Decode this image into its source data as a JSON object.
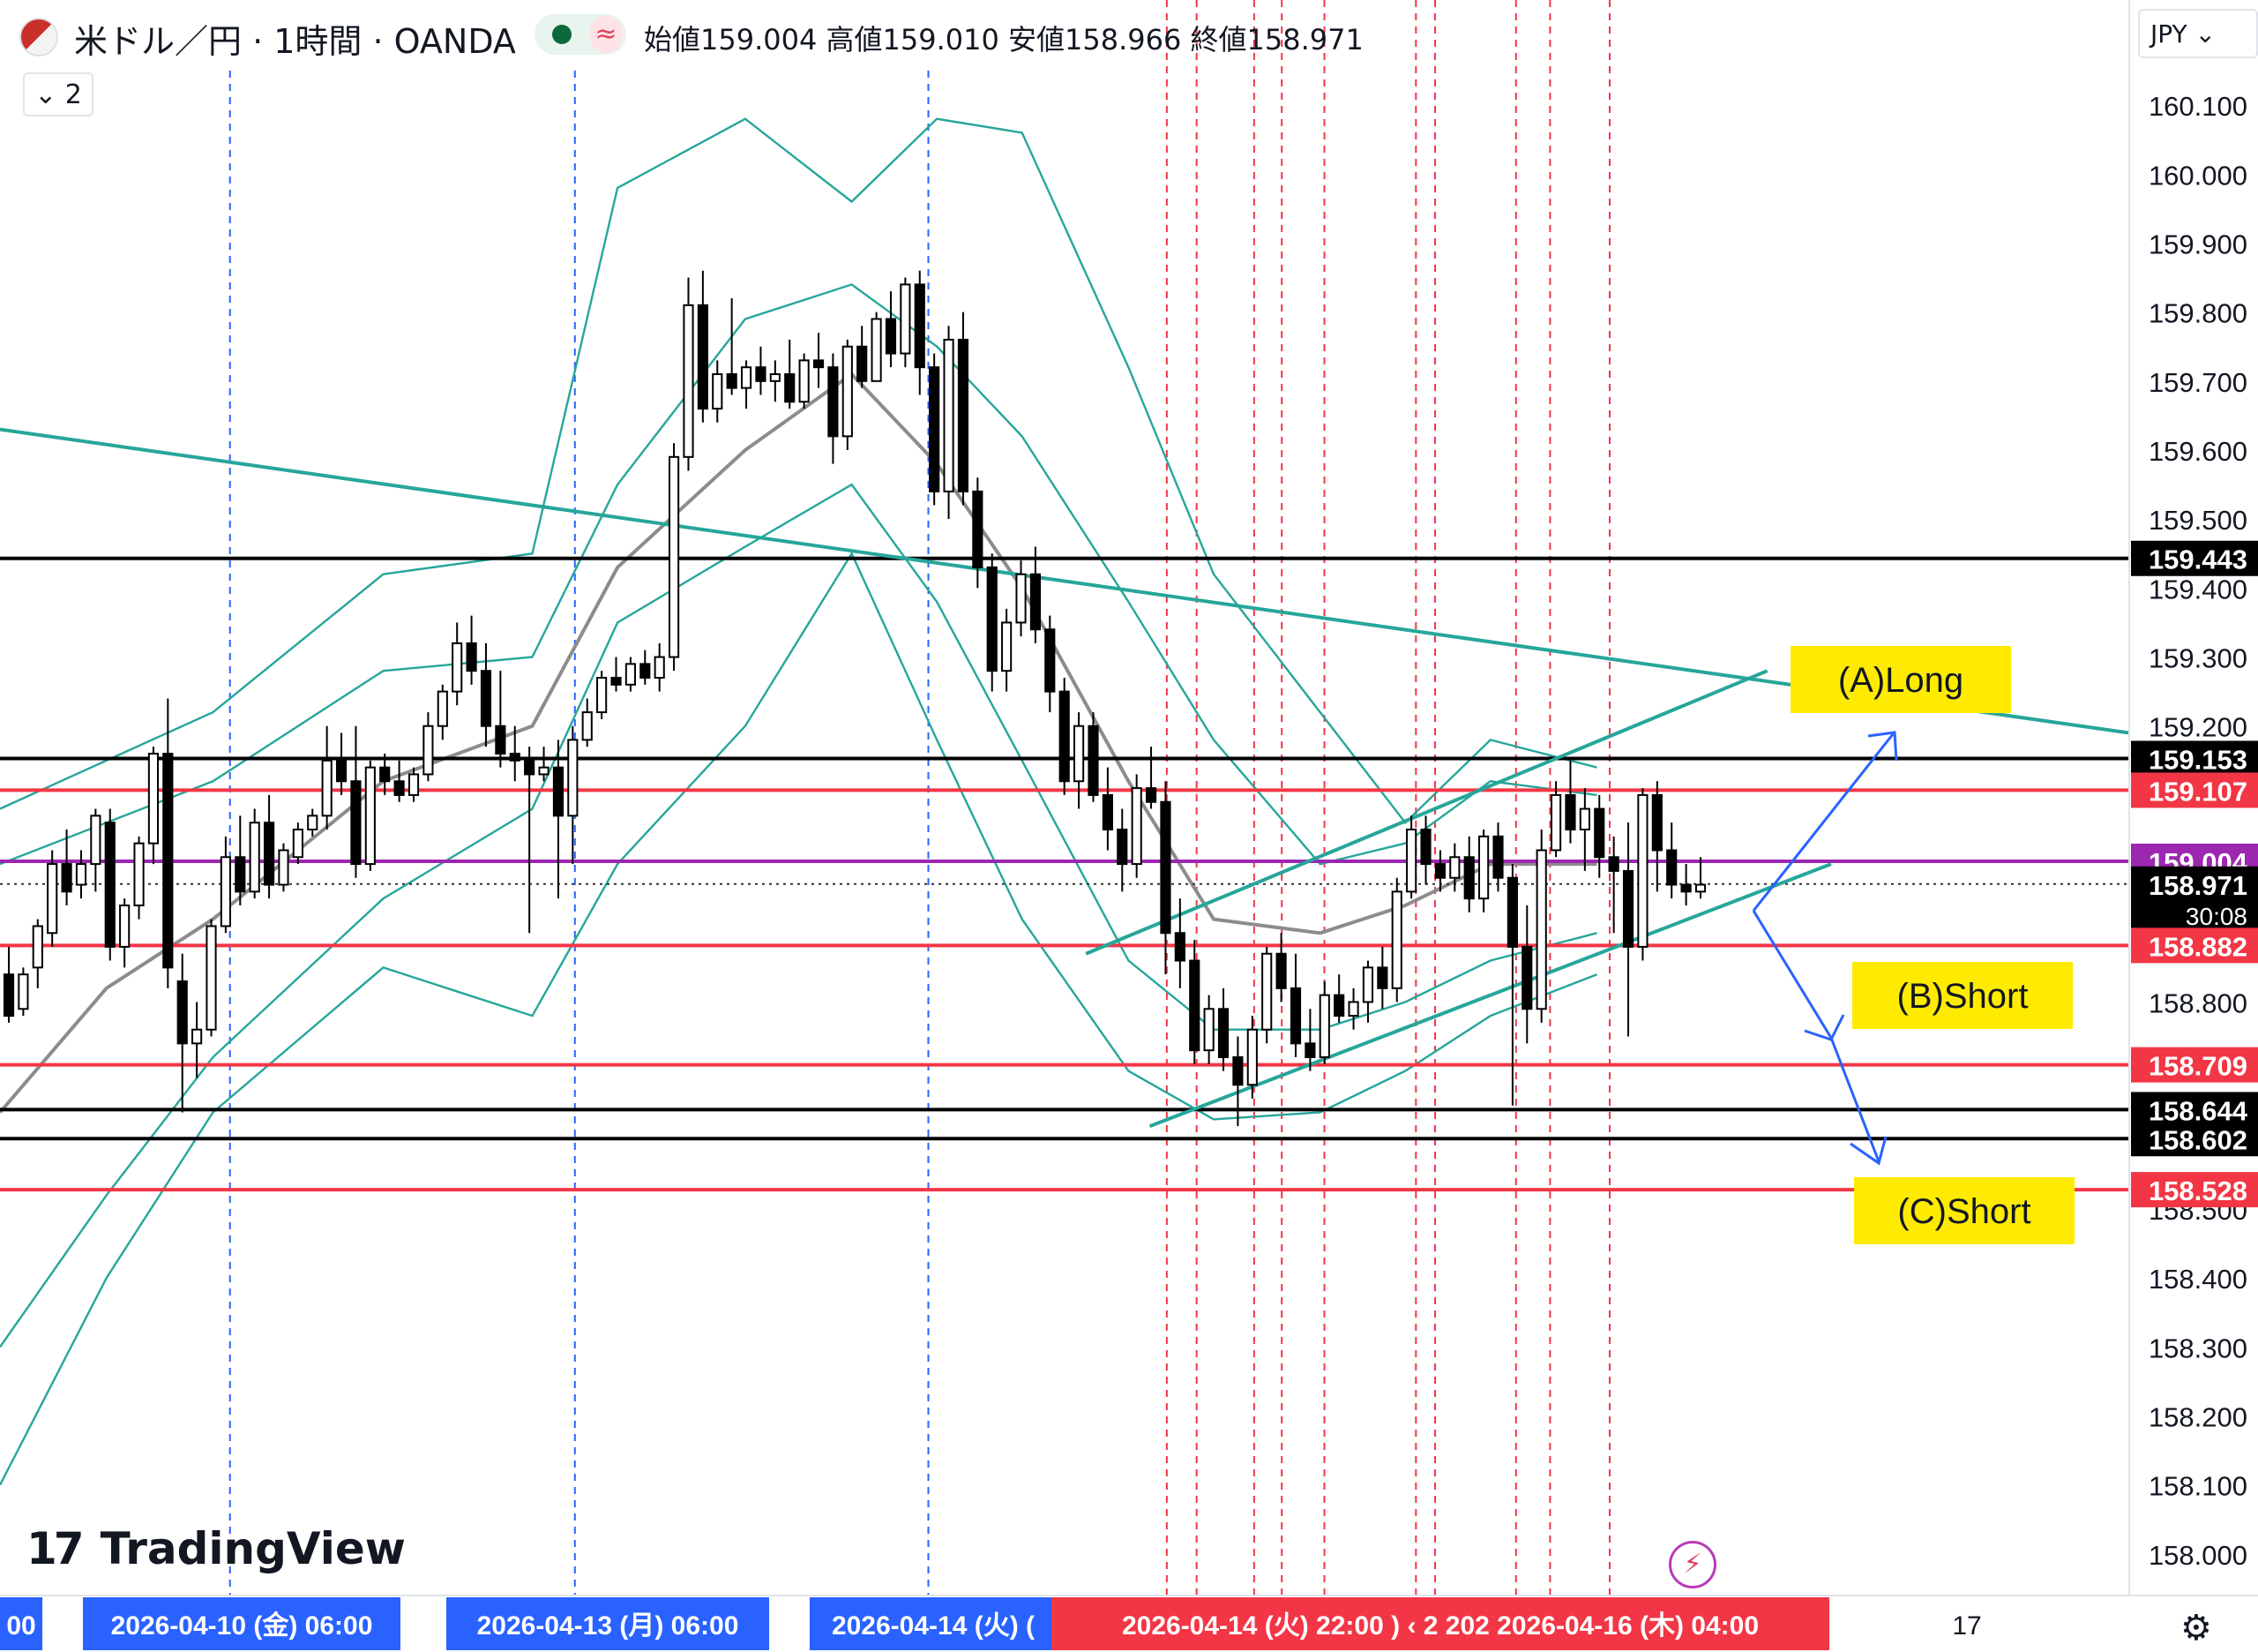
{
  "header": {
    "symbol": "米ドル／円 · 1時間 · OANDA",
    "wave_icon": "≈",
    "ohlc": "始値159.004 高値159.010 安値158.966 終値158.971",
    "indicator_toggle": "⌄ 2",
    "currency": "JPY ⌄"
  },
  "branding": {
    "logo_mark": "17",
    "logo_text": "TradingView"
  },
  "icons": [
    "flag-icon",
    "status-dot-icon",
    "wave-icon",
    "lightning-icon",
    "settings-icon"
  ],
  "colors": {
    "up_candle": "#ffffff",
    "down_candle": "#000000",
    "bollinger": "#26a69a",
    "ma": "#8c8c8c",
    "trendline": "#26a69a",
    "support_black": "#000000",
    "level_red": "#f23645",
    "level_purple": "#9c27b0",
    "arrow": "#2962ff",
    "label_yellow": "#ffeb00",
    "time_highlight": "#f23645",
    "time_base": "#2962ff"
  },
  "chart_data": {
    "type": "candlestick",
    "symbol": "USD/JPY",
    "timeframe": "1h",
    "ylim": [
      157.95,
      160.15
    ],
    "y_ticks": [
      "160.000",
      "159.900",
      "159.800",
      "159.700",
      "159.600",
      "159.500",
      "159.400",
      "159.300",
      "159.200",
      "158.800",
      "158.400",
      "158.300",
      "158.200",
      "158.100",
      "158.000"
    ],
    "partial_ticks": [
      "160.100",
      "158.500"
    ],
    "price_labels": [
      {
        "value": 159.443,
        "text": "159.443",
        "style": "black"
      },
      {
        "value": 159.153,
        "text": "159.153",
        "style": "black"
      },
      {
        "value": 159.107,
        "text": "159.107",
        "style": "red"
      },
      {
        "value": 159.004,
        "text": "159.004",
        "style": "purple"
      },
      {
        "value": 158.971,
        "text": "158.971",
        "sub": "30:08",
        "style": "black"
      },
      {
        "value": 158.882,
        "text": "158.882",
        "style": "red"
      },
      {
        "value": 158.709,
        "text": "158.709",
        "style": "red"
      },
      {
        "value": 158.644,
        "text": "158.644",
        "style": "black"
      },
      {
        "value": 158.602,
        "text": "158.602",
        "style": "black"
      },
      {
        "value": 158.528,
        "text": "158.528",
        "style": "red"
      }
    ],
    "hlines": [
      {
        "value": 159.443,
        "color": "black"
      },
      {
        "value": 159.153,
        "color": "black"
      },
      {
        "value": 159.107,
        "color": "red"
      },
      {
        "value": 159.004,
        "color": "purple"
      },
      {
        "value": 158.971,
        "color": "dotted"
      },
      {
        "value": 158.882,
        "color": "red"
      },
      {
        "value": 158.709,
        "color": "red"
      },
      {
        "value": 158.644,
        "color": "black"
      },
      {
        "value": 158.602,
        "color": "black"
      },
      {
        "value": 158.528,
        "color": "red"
      }
    ],
    "x_labels": [
      {
        "text": "00",
        "style": "blue"
      },
      {
        "text": "2026-04-10 (金)   06:00",
        "style": "blue"
      },
      {
        "text": "2026-04-13 (月)   06:00",
        "style": "blue"
      },
      {
        "text": "2026-04-14 (火)   (",
        "style": "blue"
      },
      {
        "text": "2026-04-14 (火)   22:00  )  ‹  2  202  2026-04-16 (木)   04:00",
        "style": "red"
      },
      {
        "text": "17",
        "style": "plain"
      }
    ],
    "annotations": [
      "(A)Long",
      "(B)Short",
      "(C)Short"
    ],
    "candles": [
      [
        158.84,
        158.88,
        158.77,
        158.78
      ],
      [
        158.79,
        158.85,
        158.78,
        158.84
      ],
      [
        158.85,
        158.92,
        158.82,
        158.91
      ],
      [
        158.9,
        159.02,
        158.88,
        159.0
      ],
      [
        159.0,
        159.05,
        158.94,
        158.96
      ],
      [
        158.97,
        159.02,
        158.95,
        159.0
      ],
      [
        159.0,
        159.08,
        158.96,
        159.07
      ],
      [
        159.06,
        159.08,
        158.86,
        158.88
      ],
      [
        158.88,
        158.95,
        158.85,
        158.94
      ],
      [
        158.94,
        159.04,
        158.92,
        159.03
      ],
      [
        159.03,
        159.17,
        159.0,
        159.16
      ],
      [
        159.16,
        159.24,
        158.82,
        158.85
      ],
      [
        158.83,
        158.87,
        158.64,
        158.74
      ],
      [
        158.74,
        158.8,
        158.69,
        158.76
      ],
      [
        158.76,
        158.92,
        158.75,
        158.91
      ],
      [
        158.91,
        159.04,
        158.9,
        159.01
      ],
      [
        159.01,
        159.07,
        158.94,
        158.96
      ],
      [
        158.96,
        159.08,
        158.95,
        159.06
      ],
      [
        159.06,
        159.1,
        158.95,
        158.97
      ],
      [
        158.97,
        159.03,
        158.96,
        159.02
      ],
      [
        159.01,
        159.06,
        159.0,
        159.05
      ],
      [
        159.05,
        159.08,
        159.04,
        159.07
      ],
      [
        159.07,
        159.2,
        159.05,
        159.15
      ],
      [
        159.15,
        159.19,
        159.1,
        159.12
      ],
      [
        159.12,
        159.2,
        158.98,
        159.0
      ],
      [
        159.0,
        159.15,
        158.99,
        159.14
      ],
      [
        159.14,
        159.16,
        159.1,
        159.12
      ],
      [
        159.12,
        159.15,
        159.09,
        159.1
      ],
      [
        159.1,
        159.14,
        159.09,
        159.13
      ],
      [
        159.13,
        159.22,
        159.12,
        159.2
      ],
      [
        159.2,
        159.26,
        159.18,
        159.25
      ],
      [
        159.25,
        159.35,
        159.23,
        159.32
      ],
      [
        159.32,
        159.36,
        159.26,
        159.28
      ],
      [
        159.28,
        159.32,
        159.17,
        159.2
      ],
      [
        159.2,
        159.28,
        159.14,
        159.16
      ],
      [
        159.16,
        159.2,
        159.12,
        159.15
      ],
      [
        159.15,
        159.17,
        158.9,
        159.13
      ],
      [
        159.13,
        159.17,
        159.12,
        159.14
      ],
      [
        159.14,
        159.18,
        158.95,
        159.07
      ],
      [
        159.07,
        159.2,
        159.0,
        159.18
      ],
      [
        159.18,
        159.24,
        159.17,
        159.22
      ],
      [
        159.22,
        159.28,
        159.21,
        159.27
      ],
      [
        159.27,
        159.3,
        159.25,
        159.26
      ],
      [
        159.26,
        159.3,
        159.25,
        159.29
      ],
      [
        159.29,
        159.31,
        159.26,
        159.27
      ],
      [
        159.27,
        159.32,
        159.25,
        159.3
      ],
      [
        159.3,
        159.61,
        159.28,
        159.59
      ],
      [
        159.59,
        159.85,
        159.57,
        159.81
      ],
      [
        159.81,
        159.86,
        159.64,
        159.66
      ],
      [
        159.66,
        159.73,
        159.64,
        159.71
      ],
      [
        159.71,
        159.82,
        159.68,
        159.69
      ],
      [
        159.69,
        159.73,
        159.66,
        159.72
      ],
      [
        159.72,
        159.75,
        159.68,
        159.7
      ],
      [
        159.7,
        159.73,
        159.67,
        159.71
      ],
      [
        159.71,
        159.76,
        159.66,
        159.67
      ],
      [
        159.67,
        159.74,
        159.66,
        159.73
      ],
      [
        159.73,
        159.77,
        159.69,
        159.72
      ],
      [
        159.72,
        159.74,
        159.58,
        159.62
      ],
      [
        159.62,
        159.76,
        159.6,
        159.75
      ],
      [
        159.75,
        159.78,
        159.69,
        159.7
      ],
      [
        159.7,
        159.8,
        159.7,
        159.79
      ],
      [
        159.79,
        159.83,
        159.72,
        159.74
      ],
      [
        159.74,
        159.85,
        159.72,
        159.84
      ],
      [
        159.84,
        159.86,
        159.68,
        159.72
      ],
      [
        159.72,
        159.74,
        159.52,
        159.54
      ],
      [
        159.54,
        159.78,
        159.5,
        159.76
      ],
      [
        159.76,
        159.8,
        159.52,
        159.54
      ],
      [
        159.54,
        159.56,
        159.4,
        159.43
      ],
      [
        159.43,
        159.45,
        159.25,
        159.28
      ],
      [
        159.28,
        159.37,
        159.25,
        159.35
      ],
      [
        159.35,
        159.44,
        159.33,
        159.42
      ],
      [
        159.42,
        159.46,
        159.32,
        159.34
      ],
      [
        159.34,
        159.36,
        159.22,
        159.25
      ],
      [
        159.25,
        159.27,
        159.1,
        159.12
      ],
      [
        159.12,
        159.22,
        159.08,
        159.2
      ],
      [
        159.2,
        159.22,
        159.09,
        159.1
      ],
      [
        159.1,
        159.14,
        159.02,
        159.05
      ],
      [
        159.05,
        159.08,
        158.96,
        159.0
      ],
      [
        159.0,
        159.13,
        158.98,
        159.11
      ],
      [
        159.11,
        159.17,
        159.08,
        159.09
      ],
      [
        159.09,
        159.12,
        158.84,
        158.9
      ],
      [
        158.9,
        158.95,
        158.82,
        158.86
      ],
      [
        158.86,
        158.89,
        158.71,
        158.73
      ],
      [
        158.73,
        158.81,
        158.71,
        158.79
      ],
      [
        158.79,
        158.82,
        158.7,
        158.72
      ],
      [
        158.72,
        158.75,
        158.62,
        158.68
      ],
      [
        158.68,
        158.78,
        158.66,
        158.76
      ],
      [
        158.76,
        158.88,
        158.74,
        158.87
      ],
      [
        158.87,
        158.9,
        158.8,
        158.82
      ],
      [
        158.82,
        158.87,
        158.72,
        158.74
      ],
      [
        158.74,
        158.79,
        158.7,
        158.72
      ],
      [
        158.72,
        158.83,
        158.71,
        158.81
      ],
      [
        158.81,
        158.84,
        158.77,
        158.78
      ],
      [
        158.78,
        158.82,
        158.76,
        158.8
      ],
      [
        158.8,
        158.86,
        158.77,
        158.85
      ],
      [
        158.85,
        158.88,
        158.79,
        158.82
      ],
      [
        158.82,
        158.98,
        158.8,
        158.96
      ],
      [
        158.96,
        159.07,
        158.95,
        159.05
      ],
      [
        159.05,
        159.07,
        158.97,
        159.0
      ],
      [
        159.0,
        159.02,
        158.96,
        158.98
      ],
      [
        158.98,
        159.03,
        158.96,
        159.01
      ],
      [
        159.01,
        159.04,
        158.93,
        158.95
      ],
      [
        158.95,
        159.05,
        158.93,
        159.04
      ],
      [
        159.04,
        159.06,
        158.96,
        158.98
      ],
      [
        158.98,
        159.0,
        158.65,
        158.88
      ],
      [
        158.88,
        158.94,
        158.74,
        158.79
      ],
      [
        158.79,
        159.05,
        158.77,
        159.02
      ],
      [
        159.02,
        159.12,
        159.01,
        159.1
      ],
      [
        159.1,
        159.15,
        159.03,
        159.05
      ],
      [
        159.05,
        159.11,
        158.99,
        159.08
      ],
      [
        159.08,
        159.1,
        158.98,
        159.01
      ],
      [
        159.01,
        159.04,
        158.9,
        158.99
      ],
      [
        158.99,
        159.06,
        158.75,
        158.88
      ],
      [
        158.88,
        159.11,
        158.86,
        159.1
      ],
      [
        159.1,
        159.12,
        158.96,
        159.02
      ],
      [
        159.02,
        159.06,
        158.95,
        158.97
      ],
      [
        158.97,
        159.0,
        158.94,
        158.96
      ],
      [
        158.96,
        159.01,
        158.95,
        158.97
      ]
    ],
    "bollinger": {
      "upper2": [
        [
          0,
          159.08
        ],
        [
          0.1,
          159.22
        ],
        [
          0.18,
          159.42
        ],
        [
          0.25,
          159.45
        ],
        [
          0.29,
          159.98
        ],
        [
          0.35,
          160.08
        ],
        [
          0.4,
          159.96
        ],
        [
          0.44,
          160.08
        ],
        [
          0.48,
          160.06
        ],
        [
          0.53,
          159.72
        ],
        [
          0.57,
          159.42
        ],
        [
          0.62,
          159.22
        ],
        [
          0.66,
          159.06
        ],
        [
          0.7,
          159.18
        ],
        [
          0.75,
          159.14
        ]
      ],
      "upper1": [
        [
          0,
          159.0
        ],
        [
          0.1,
          159.12
        ],
        [
          0.18,
          159.28
        ],
        [
          0.25,
          159.3
        ],
        [
          0.29,
          159.55
        ],
        [
          0.35,
          159.79
        ],
        [
          0.4,
          159.84
        ],
        [
          0.44,
          159.75
        ],
        [
          0.48,
          159.62
        ],
        [
          0.53,
          159.38
        ],
        [
          0.57,
          159.18
        ],
        [
          0.62,
          159.0
        ],
        [
          0.66,
          159.03
        ],
        [
          0.7,
          159.12
        ],
        [
          0.75,
          159.1
        ]
      ],
      "middle": [
        [
          0,
          158.64
        ],
        [
          0.05,
          158.82
        ],
        [
          0.1,
          158.92
        ],
        [
          0.18,
          159.12
        ],
        [
          0.25,
          159.2
        ],
        [
          0.29,
          159.43
        ],
        [
          0.35,
          159.6
        ],
        [
          0.4,
          159.71
        ],
        [
          0.44,
          159.58
        ],
        [
          0.48,
          159.4
        ],
        [
          0.53,
          159.12
        ],
        [
          0.57,
          158.92
        ],
        [
          0.62,
          158.9
        ],
        [
          0.66,
          158.94
        ],
        [
          0.7,
          159.0
        ],
        [
          0.75,
          159.0
        ]
      ],
      "lower1": [
        [
          0,
          158.3
        ],
        [
          0.05,
          158.52
        ],
        [
          0.1,
          158.72
        ],
        [
          0.18,
          158.95
        ],
        [
          0.25,
          159.08
        ],
        [
          0.29,
          159.35
        ],
        [
          0.35,
          159.46
        ],
        [
          0.4,
          159.55
        ],
        [
          0.44,
          159.38
        ],
        [
          0.48,
          159.15
        ],
        [
          0.53,
          158.86
        ],
        [
          0.57,
          158.76
        ],
        [
          0.62,
          158.76
        ],
        [
          0.66,
          158.8
        ],
        [
          0.7,
          158.86
        ],
        [
          0.75,
          158.9
        ]
      ],
      "lower2": [
        [
          0,
          158.1
        ],
        [
          0.05,
          158.4
        ],
        [
          0.1,
          158.64
        ],
        [
          0.18,
          158.85
        ],
        [
          0.25,
          158.78
        ],
        [
          0.29,
          159.0
        ],
        [
          0.35,
          159.2
        ],
        [
          0.4,
          159.45
        ],
        [
          0.44,
          159.18
        ],
        [
          0.48,
          158.92
        ],
        [
          0.53,
          158.7
        ],
        [
          0.57,
          158.63
        ],
        [
          0.62,
          158.64
        ],
        [
          0.66,
          158.7
        ],
        [
          0.7,
          158.78
        ],
        [
          0.75,
          158.84
        ]
      ]
    },
    "trendlines": [
      {
        "from": [
          0,
          159.63
        ],
        "to": [
          1.0,
          159.19
        ]
      },
      {
        "from": [
          0.51,
          158.87
        ],
        "to": [
          0.83,
          159.28
        ]
      },
      {
        "from": [
          0.54,
          158.62
        ],
        "to": [
          0.86,
          159.0
        ]
      }
    ]
  }
}
